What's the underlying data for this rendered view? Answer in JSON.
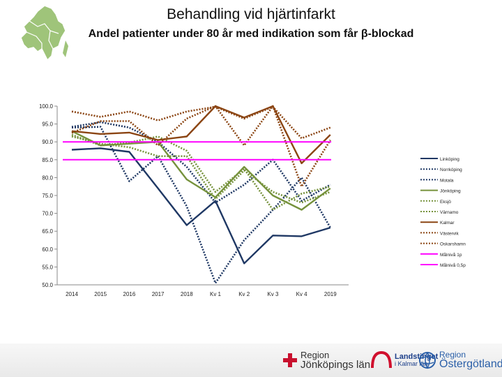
{
  "header": {
    "title": "Behandling vid hjärtinfarkt",
    "subtitle": "Andel patienter under 80 år med indikation som får β-blockad"
  },
  "footer": {
    "logo_jonkoping": [
      "Region",
      "Jönköpings län"
    ],
    "logo_kalmar": [
      "Landstinget",
      "i Kalmar län"
    ],
    "logo_ostergotland": [
      "Region",
      "Östergötland"
    ]
  },
  "chart_data": {
    "type": "line",
    "title": "Behandling vid hjärtinfarkt",
    "subtitle": "Andel patienter under 80 år med indikation som får β-blockad",
    "categories": [
      "2014",
      "2015",
      "2016",
      "2017",
      "2018",
      "Kv 1",
      "Kv 2",
      "Kv 3",
      "Kv 4",
      "2019"
    ],
    "ylim": [
      50,
      100
    ],
    "yticks": [
      "100.0",
      "95.0",
      "90.0",
      "85.0",
      "80.0",
      "75.0",
      "70.0",
      "65.0",
      "60.0",
      "55.0",
      "50.0"
    ],
    "grid": false,
    "legend": "right",
    "series": [
      {
        "name": "Linköping",
        "color": "#1f3864",
        "dash": false,
        "values": [
          87.8,
          88.2,
          87.2,
          77.0,
          66.7,
          73.5,
          56.0,
          63.8,
          63.6,
          66.0
        ]
      },
      {
        "name": "Norrköping",
        "color": "#1f3864",
        "dash": true,
        "values": [
          94.0,
          94.2,
          79.0,
          86.0,
          72.0,
          50.5,
          62.5,
          71.0,
          80.0,
          66.0
        ]
      },
      {
        "name": "Motala",
        "color": "#1f3864",
        "dash": true,
        "values": [
          94.2,
          95.5,
          94.0,
          90.0,
          83.0,
          73.0,
          78.0,
          85.0,
          73.5,
          78.0
        ]
      },
      {
        "name": "Jönköping",
        "color": "#76923c",
        "dash": false,
        "values": [
          93.0,
          89.0,
          89.5,
          90.0,
          79.5,
          74.5,
          83.0,
          75.0,
          71.0,
          77.0
        ]
      },
      {
        "name": "Eksjö",
        "color": "#76923c",
        "dash": true,
        "values": [
          92.0,
          89.0,
          89.8,
          91.5,
          87.5,
          76.0,
          82.5,
          71.0,
          75.5,
          77.5
        ]
      },
      {
        "name": "Värnamo",
        "color": "#76923c",
        "dash": true,
        "values": [
          91.5,
          89.5,
          88.5,
          86.0,
          86.0,
          74.0,
          82.0,
          76.0,
          73.0,
          76.0
        ]
      },
      {
        "name": "Kalmar",
        "color": "#8b4513",
        "dash": false,
        "values": [
          93.0,
          92.2,
          92.6,
          90.5,
          91.5,
          100.0,
          96.8,
          100.0,
          84.0,
          92.0
        ]
      },
      {
        "name": "Västervik",
        "color": "#8b4513",
        "dash": true,
        "values": [
          92.5,
          95.8,
          95.8,
          89.0,
          96.5,
          100.0,
          89.0,
          100.0,
          77.5,
          90.5
        ]
      },
      {
        "name": "Oskarshamn",
        "color": "#8b4513",
        "dash": true,
        "values": [
          98.5,
          97.0,
          98.5,
          96.0,
          98.5,
          99.8,
          96.5,
          99.8,
          91.0,
          94.0
        ]
      },
      {
        "name": "Målnivå 1p",
        "color": "#ff00ff",
        "dash": false,
        "values": [
          90,
          90,
          90,
          90,
          90,
          90,
          90,
          90,
          90,
          90
        ]
      },
      {
        "name": "Målnivå 0,5p",
        "color": "#ff00ff",
        "dash": false,
        "values": [
          85,
          85,
          85,
          85,
          85,
          85,
          85,
          85,
          85,
          85
        ]
      }
    ],
    "legend_labels": [
      "Linköping",
      "Norrköping",
      "Motala",
      "Jönköping",
      "Eksjö",
      "Värnamo",
      "Kalmar",
      "Västervik",
      "Oskarshamn",
      "Målnivå 1p",
      "Målnivå 0,5p"
    ]
  }
}
